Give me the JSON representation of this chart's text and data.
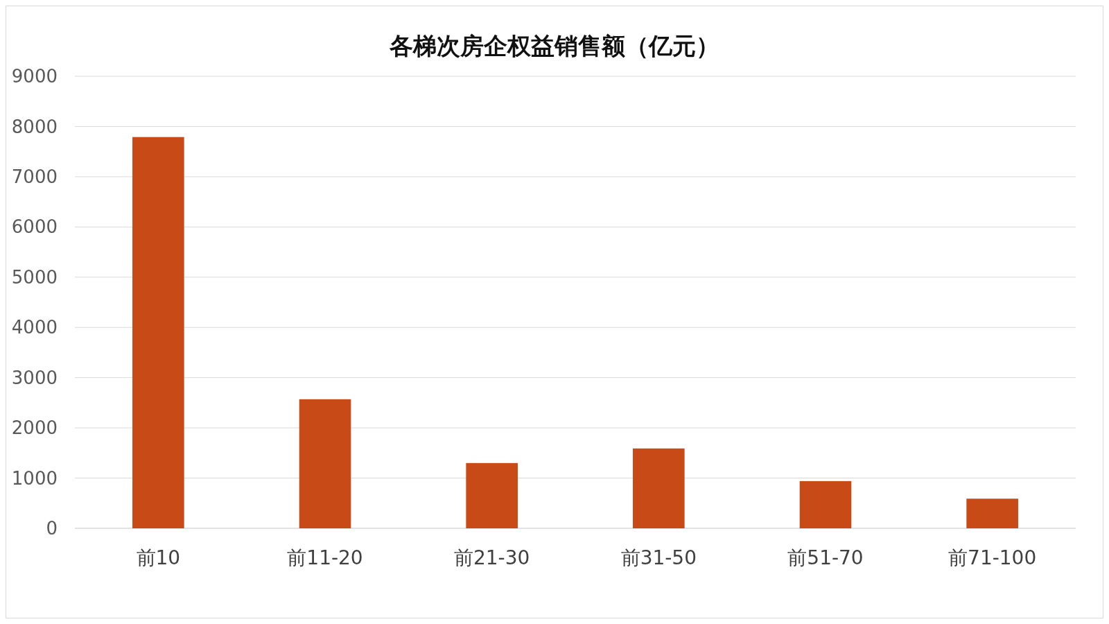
{
  "chart_data": {
    "type": "bar",
    "title": "各梯次房企权益销售额（亿元）",
    "categories": [
      "前10",
      "前11-20",
      "前21-30",
      "前31-50",
      "前51-70",
      "前71-100"
    ],
    "values": [
      7790,
      2570,
      1300,
      1590,
      940,
      590
    ],
    "color": "#c84b17",
    "ylim": [
      0,
      9000
    ],
    "yticks": [
      0,
      1000,
      2000,
      3000,
      4000,
      5000,
      6000,
      7000,
      8000,
      9000
    ],
    "grid": "y"
  }
}
